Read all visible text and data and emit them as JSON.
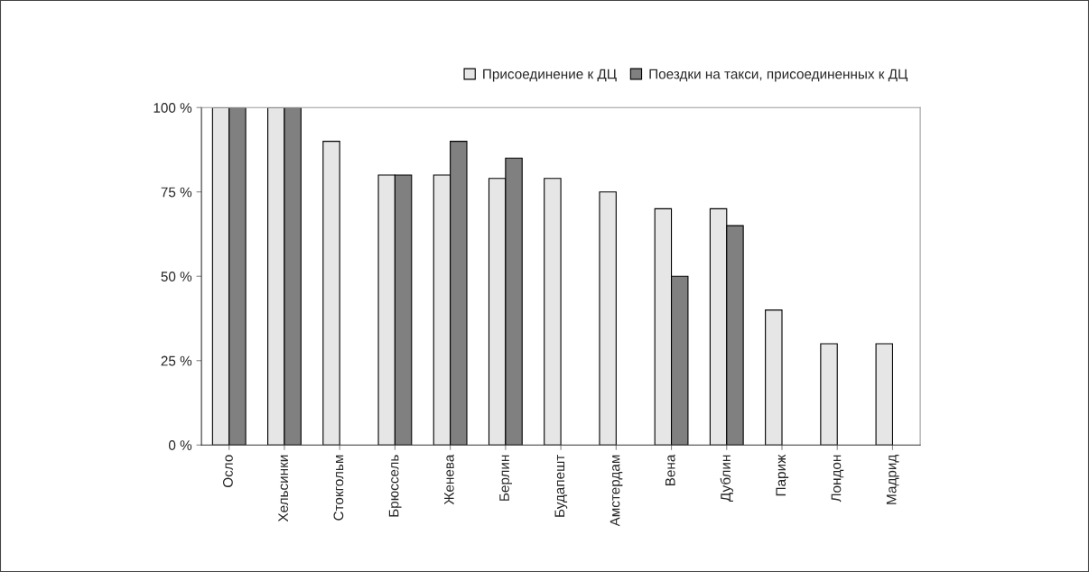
{
  "chart_data": {
    "type": "bar",
    "categories": [
      "Осло",
      "Хельсинки",
      "Стокгольм",
      "Брюссель",
      "Женева",
      "Берлин",
      "Будапешт",
      "Амстердам",
      "Вена",
      "Дублин",
      "Париж",
      "Лондон",
      "Мадрид"
    ],
    "series": [
      {
        "name": "Присоединение к ДЦ",
        "color": "#e6e6e6",
        "values": [
          100,
          100,
          90,
          80,
          80,
          79,
          79,
          75,
          70,
          70,
          40,
          30,
          30
        ]
      },
      {
        "name": "Поездки на такси, присоединенных к ДЦ",
        "color": "#808080",
        "values": [
          100,
          100,
          null,
          80,
          90,
          85,
          null,
          null,
          50,
          65,
          null,
          null,
          null
        ]
      }
    ],
    "ylim": [
      0,
      100
    ],
    "yticks": [
      {
        "value": 0,
        "label": "0 %"
      },
      {
        "value": 25,
        "label": "25 %"
      },
      {
        "value": 50,
        "label": "50 %"
      },
      {
        "value": 75,
        "label": "75 %"
      },
      {
        "value": 100,
        "label": "100 %"
      }
    ],
    "grid": false,
    "legend": "top right"
  }
}
